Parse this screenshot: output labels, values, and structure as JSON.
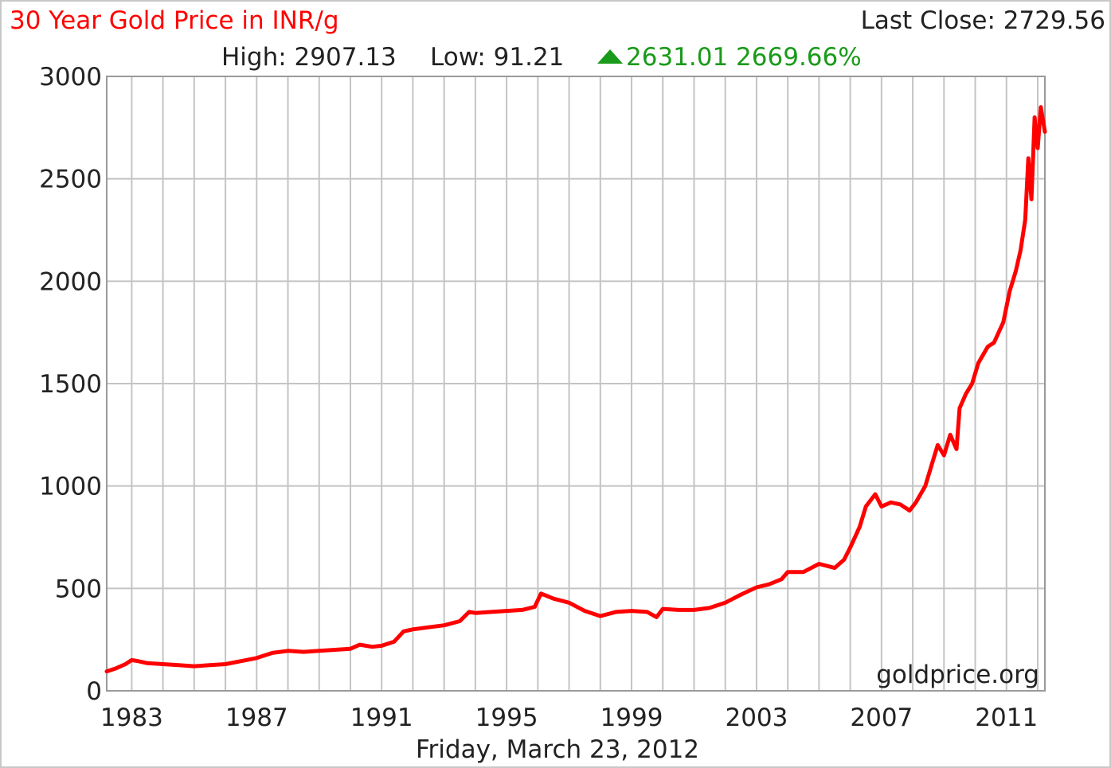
{
  "chart_data": {
    "type": "line",
    "title": "30 Year Gold Price in INR/g",
    "last_close_label": "Last Close: 2729.56",
    "stats": {
      "high_label": "High: 2907.13",
      "low_label": "Low: 91.21",
      "change_label": "2631.01 2669.66%",
      "change_direction": "up"
    },
    "date_label": "Friday, March 23, 2012",
    "watermark": "goldprice.org",
    "xlim": [
      1982.2,
      2012.23
    ],
    "ylim": [
      0,
      3000
    ],
    "y_ticks": [
      "0",
      "500",
      "1000",
      "1500",
      "2000",
      "2500",
      "3000"
    ],
    "x_ticks": [
      "1983",
      "1987",
      "1991",
      "1995",
      "1999",
      "2003",
      "2007",
      "2011"
    ],
    "grid": true,
    "series": [
      {
        "color": "#ff0000",
        "x": [
          1982.2,
          1982.5,
          1982.8,
          1983.0,
          1983.2,
          1983.5,
          1984.0,
          1984.5,
          1985.0,
          1985.5,
          1986.0,
          1986.5,
          1987.0,
          1987.5,
          1988.0,
          1988.5,
          1989.0,
          1989.5,
          1990.0,
          1990.3,
          1990.7,
          1991.0,
          1991.4,
          1991.7,
          1992.0,
          1992.5,
          1993.0,
          1993.5,
          1993.8,
          1994.0,
          1994.5,
          1995.0,
          1995.5,
          1995.9,
          1996.1,
          1996.5,
          1997.0,
          1997.5,
          1998.0,
          1998.5,
          1999.0,
          1999.5,
          1999.8,
          2000.0,
          2000.5,
          2001.0,
          2001.5,
          2002.0,
          2002.5,
          2003.0,
          2003.4,
          2003.8,
          2004.0,
          2004.5,
          2005.0,
          2005.5,
          2005.8,
          2006.0,
          2006.3,
          2006.5,
          2006.8,
          2007.0,
          2007.3,
          2007.6,
          2007.9,
          2008.1,
          2008.4,
          2008.6,
          2008.8,
          2009.0,
          2009.2,
          2009.4,
          2009.5,
          2009.7,
          2009.9,
          2010.1,
          2010.4,
          2010.6,
          2010.9,
          2011.1,
          2011.3,
          2011.45,
          2011.6,
          2011.7,
          2011.8,
          2011.9,
          2012.0,
          2012.1,
          2012.23
        ],
        "values": [
          95,
          110,
          130,
          150,
          145,
          135,
          130,
          125,
          120,
          125,
          130,
          145,
          160,
          185,
          195,
          190,
          195,
          200,
          205,
          225,
          215,
          220,
          240,
          290,
          300,
          310,
          320,
          340,
          385,
          380,
          385,
          390,
          395,
          410,
          475,
          450,
          430,
          390,
          365,
          385,
          390,
          385,
          360,
          400,
          395,
          395,
          405,
          430,
          470,
          505,
          520,
          545,
          580,
          580,
          620,
          600,
          640,
          700,
          800,
          900,
          960,
          900,
          920,
          910,
          880,
          920,
          1000,
          1100,
          1200,
          1150,
          1250,
          1180,
          1380,
          1450,
          1500,
          1600,
          1680,
          1700,
          1800,
          1950,
          2050,
          2150,
          2300,
          2600,
          2400,
          2800,
          2650,
          2850,
          2729.56
        ]
      }
    ]
  }
}
